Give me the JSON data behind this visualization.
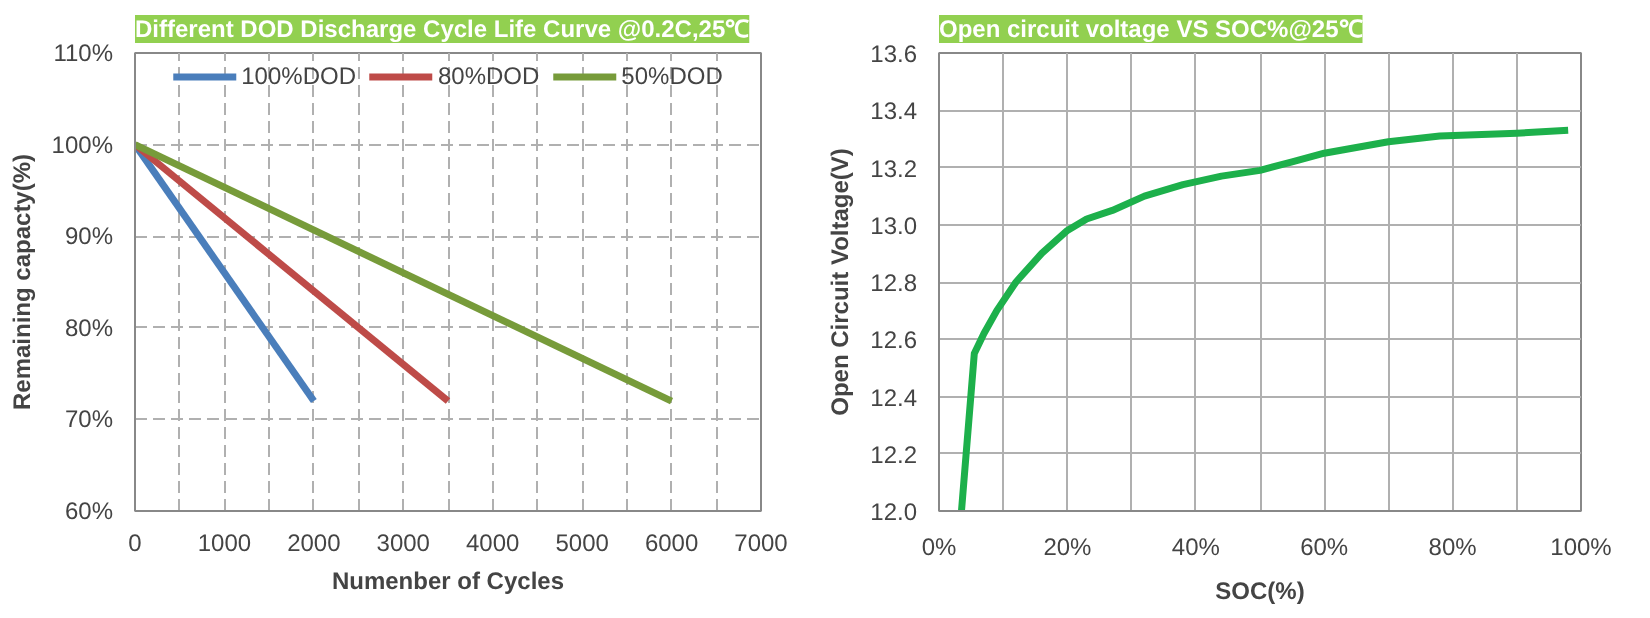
{
  "chart_data": [
    {
      "type": "line",
      "title": "Different DOD Discharge Cycle Life Curve @0.2C,25℃",
      "xlabel": "Numenber of Cycles",
      "ylabel": "Remaining capacty(%)",
      "xlim": [
        0,
        7000
      ],
      "ylim": [
        60,
        110
      ],
      "xticks": [
        0,
        {
          "value": 500,
          "label": null
        },
        1000,
        {
          "value": 1500,
          "label": null
        },
        2000,
        {
          "value": 2500,
          "label": null
        },
        3000,
        {
          "value": 3500,
          "label": null
        },
        4000,
        {
          "value": 4500,
          "label": null
        },
        5000,
        {
          "value": 5500,
          "label": null
        },
        6000,
        {
          "value": 6500,
          "label": null
        },
        7000
      ],
      "yticks": [
        {
          "value": 60,
          "label": "60%"
        },
        {
          "value": 70,
          "label": "70%"
        },
        {
          "value": 80,
          "label": "80%"
        },
        {
          "value": 90,
          "label": "90%"
        },
        {
          "value": 100,
          "label": "100%"
        },
        {
          "value": 110,
          "label": "110%"
        }
      ],
      "grid": true,
      "legend": "top",
      "series": [
        {
          "name": "100%DOD",
          "color": "#4a7ebb",
          "x": [
            0,
            2000
          ],
          "values": [
            100,
            72
          ]
        },
        {
          "name": "80%DOD",
          "color": "#be4b48",
          "x": [
            0,
            3500
          ],
          "values": [
            100,
            72
          ]
        },
        {
          "name": "50%DOD",
          "color": "#779b3a",
          "x": [
            0,
            6000
          ],
          "values": [
            100,
            72
          ]
        }
      ]
    },
    {
      "type": "line",
      "title": "Open circuit voltage VS SOC%@25℃",
      "xlabel": "SOC(%)",
      "ylabel": "Open Circuit Voltage(V)",
      "xlim": [
        0,
        100
      ],
      "ylim": [
        12.0,
        13.6
      ],
      "xticks": [
        {
          "value": 0,
          "label": "0%"
        },
        {
          "value": 10,
          "label": null
        },
        {
          "value": 20,
          "label": "20%"
        },
        {
          "value": 30,
          "label": null
        },
        {
          "value": 40,
          "label": "40%"
        },
        {
          "value": 50,
          "label": null
        },
        {
          "value": 60,
          "label": "60%"
        },
        {
          "value": 70,
          "label": null
        },
        {
          "value": 80,
          "label": "80%"
        },
        {
          "value": 90,
          "label": null
        },
        {
          "value": 100,
          "label": "100%"
        }
      ],
      "yticks": [
        {
          "value": 12.0,
          "label": "12.0"
        },
        {
          "value": 12.2,
          "label": "12.2"
        },
        {
          "value": 12.4,
          "label": "12.4"
        },
        {
          "value": 12.6,
          "label": "12.6"
        },
        {
          "value": 12.8,
          "label": "12.8"
        },
        {
          "value": 13.0,
          "label": "13.0"
        },
        {
          "value": 13.2,
          "label": "13.2"
        },
        {
          "value": 13.4,
          "label": "13.4"
        },
        {
          "value": 13.6,
          "label": "13.6"
        }
      ],
      "grid": true,
      "series": [
        {
          "color": "#1db04b",
          "x": [
            3.5,
            5.5,
            7,
            9,
            12,
            16,
            20,
            23,
            27,
            32,
            38,
            44,
            50,
            55,
            60,
            70,
            78,
            90,
            98
          ],
          "values": [
            12.0,
            12.55,
            12.62,
            12.7,
            12.8,
            12.9,
            12.98,
            13.02,
            13.05,
            13.1,
            13.14,
            13.17,
            13.19,
            13.22,
            13.25,
            13.29,
            13.31,
            13.32,
            13.33
          ]
        }
      ]
    }
  ]
}
